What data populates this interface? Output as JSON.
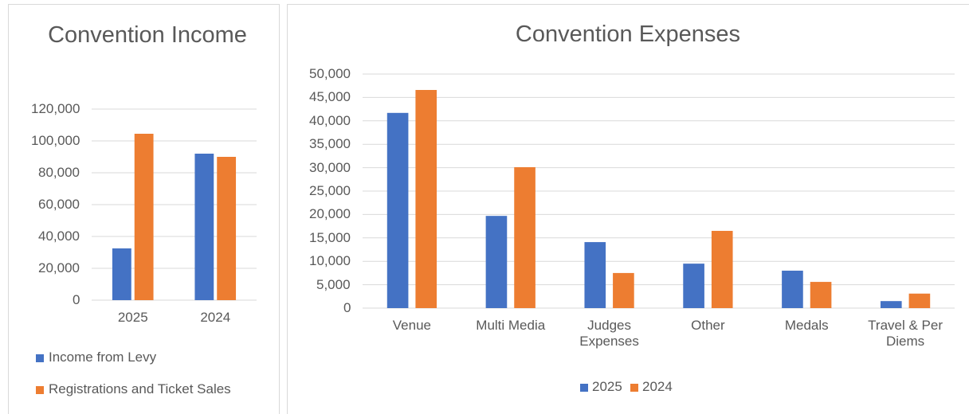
{
  "chart_data": [
    {
      "type": "bar",
      "title": "Convention Income",
      "categories": [
        "2025",
        "2024"
      ],
      "series": [
        {
          "name": "Income from Levy",
          "color": "#4472c4",
          "values": [
            32500,
            92000
          ]
        },
        {
          "name": "Registrations and Ticket Sales",
          "color": "#ed7d31",
          "values": [
            104500,
            90000
          ]
        }
      ],
      "ylim": [
        0,
        120000
      ],
      "yticks": [
        0,
        {
          "value": 20000,
          "label": "20,000"
        },
        {
          "value": 40000,
          "label": "40,000"
        },
        {
          "value": 60000,
          "label": "60,000"
        },
        {
          "value": 80000,
          "label": "80,000"
        },
        {
          "value": 100000,
          "label": "100,000"
        },
        {
          "value": 120000,
          "label": "120,000"
        }
      ],
      "grid": true,
      "legend": "bottom"
    },
    {
      "type": "bar",
      "title": "Convention Expenses",
      "categories": [
        "Venue",
        "Multi Media",
        "Judges Expenses",
        "Other",
        "Medals",
        "Travel & Per Diems"
      ],
      "series": [
        {
          "name": "2025",
          "color": "#4472c4",
          "values": [
            41700,
            19700,
            14100,
            9500,
            8000,
            1500
          ]
        },
        {
          "name": "2024",
          "color": "#ed7d31",
          "values": [
            46600,
            30100,
            7500,
            16500,
            5600,
            3100
          ]
        }
      ],
      "ylim": [
        0,
        50000
      ],
      "yticks": [
        0,
        {
          "value": 5000,
          "label": "5,000"
        },
        {
          "value": 10000,
          "label": "10,000"
        },
        {
          "value": 15000,
          "label": "15,000"
        },
        {
          "value": 20000,
          "label": "20,000"
        },
        {
          "value": 25000,
          "label": "25,000"
        },
        {
          "value": 30000,
          "label": "30,000"
        },
        {
          "value": 35000,
          "label": "35,000"
        },
        {
          "value": 40000,
          "label": "40,000"
        },
        {
          "value": 45000,
          "label": "45,000"
        },
        {
          "value": 50000,
          "label": "50,000"
        }
      ],
      "grid": true,
      "legend": "bottom"
    }
  ]
}
